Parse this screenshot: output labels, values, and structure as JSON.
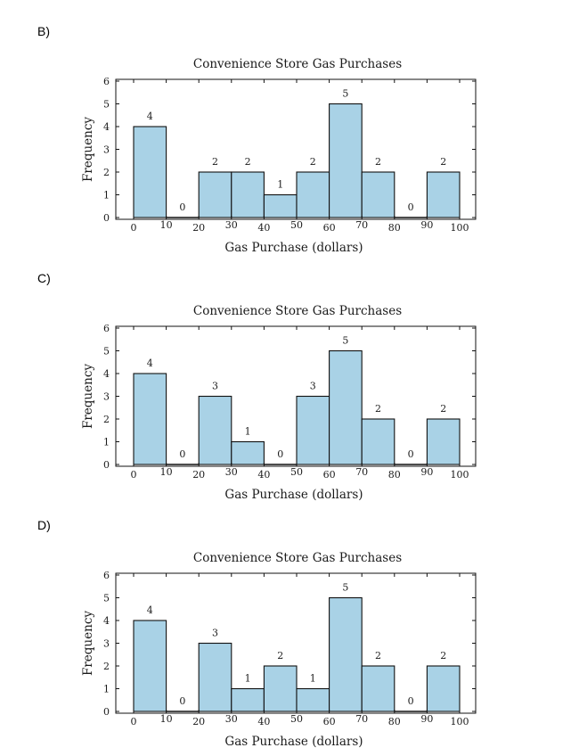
{
  "colors": {
    "bar_fill": "#a9d2e6",
    "bar_stroke": "#111111",
    "background": "#ffffff"
  },
  "options": [
    {
      "label": "B)"
    },
    {
      "label": "C)"
    },
    {
      "label": "D)"
    }
  ],
  "chart_data": [
    {
      "type": "bar",
      "title": "Convenience Store Gas Purchases",
      "xlabel": "Gas Purchase (dollars)",
      "ylabel": "Frequency",
      "bins": [
        [
          0,
          10
        ],
        [
          10,
          20
        ],
        [
          20,
          30
        ],
        [
          30,
          40
        ],
        [
          40,
          50
        ],
        [
          50,
          60
        ],
        [
          60,
          70
        ],
        [
          70,
          80
        ],
        [
          80,
          90
        ],
        [
          90,
          100
        ]
      ],
      "values": [
        4,
        0,
        2,
        2,
        1,
        2,
        5,
        2,
        0,
        2
      ],
      "xticks": [
        0,
        10,
        20,
        30,
        40,
        50,
        60,
        70,
        80,
        90,
        100
      ],
      "yticks": [
        0,
        1,
        2,
        3,
        4,
        5,
        6
      ],
      "xlim": [
        0,
        100
      ],
      "ylim": [
        0,
        6
      ],
      "grid": false,
      "legend": "none"
    },
    {
      "type": "bar",
      "title": "Convenience Store Gas Purchases",
      "xlabel": "Gas Purchase (dollars)",
      "ylabel": "Frequency",
      "bins": [
        [
          0,
          10
        ],
        [
          10,
          20
        ],
        [
          20,
          30
        ],
        [
          30,
          40
        ],
        [
          40,
          50
        ],
        [
          50,
          60
        ],
        [
          60,
          70
        ],
        [
          70,
          80
        ],
        [
          80,
          90
        ],
        [
          90,
          100
        ]
      ],
      "values": [
        4,
        0,
        3,
        1,
        0,
        3,
        5,
        2,
        0,
        2
      ],
      "xticks": [
        0,
        10,
        20,
        30,
        40,
        50,
        60,
        70,
        80,
        90,
        100
      ],
      "yticks": [
        0,
        1,
        2,
        3,
        4,
        5,
        6
      ],
      "xlim": [
        0,
        100
      ],
      "ylim": [
        0,
        6
      ],
      "grid": false,
      "legend": "none"
    },
    {
      "type": "bar",
      "title": "Convenience Store Gas Purchases",
      "xlabel": "Gas Purchase (dollars)",
      "ylabel": "Frequency",
      "bins": [
        [
          0,
          10
        ],
        [
          10,
          20
        ],
        [
          20,
          30
        ],
        [
          30,
          40
        ],
        [
          40,
          50
        ],
        [
          50,
          60
        ],
        [
          60,
          70
        ],
        [
          70,
          80
        ],
        [
          80,
          90
        ],
        [
          90,
          100
        ]
      ],
      "values": [
        4,
        0,
        3,
        1,
        2,
        1,
        5,
        2,
        0,
        2
      ],
      "xticks": [
        0,
        10,
        20,
        30,
        40,
        50,
        60,
        70,
        80,
        90,
        100
      ],
      "yticks": [
        0,
        1,
        2,
        3,
        4,
        5,
        6
      ],
      "xlim": [
        0,
        100
      ],
      "ylim": [
        0,
        6
      ],
      "grid": false,
      "legend": "none"
    }
  ]
}
